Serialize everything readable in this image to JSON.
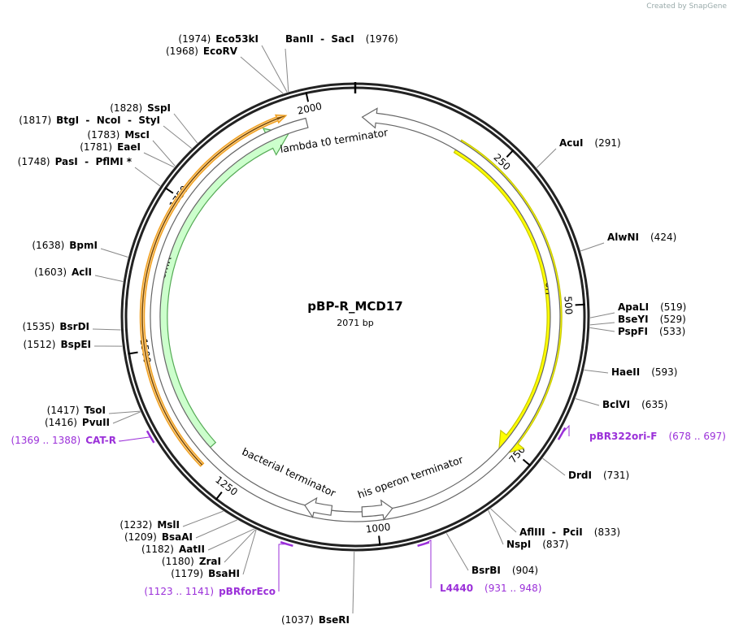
{
  "credit": "Created by SnapGene",
  "map": {
    "title": "pBP-R_MCD17",
    "length": 2071,
    "length_label": "2071 bp",
    "ticks": [
      250,
      500,
      750,
      1000,
      1250,
      1500,
      1750,
      2000
    ],
    "features": [
      {
        "name": "ori"
      },
      {
        "name": "CmR"
      },
      {
        "name": "lambda t0 terminator"
      },
      {
        "name": "bacterial terminator"
      },
      {
        "name": "his operon terminator"
      }
    ],
    "sites": [
      {
        "name": "Eco53kI",
        "position": 1974,
        "label": "(1974)"
      },
      {
        "name": "EcoRV",
        "position": 1968,
        "label": "(1968)"
      },
      {
        "name": "BanII  -  SacI",
        "position": 1976,
        "label": "(1976)"
      },
      {
        "name": "SspI",
        "position": 1828,
        "label": "(1828)"
      },
      {
        "name": "BtgI  -  NcoI  -  StyI",
        "position": 1817,
        "label": "(1817)"
      },
      {
        "name": "MscI",
        "position": 1783,
        "label": "(1783)"
      },
      {
        "name": "EaeI",
        "position": 1781,
        "label": "(1781)"
      },
      {
        "name": "PasI  -  PflMI *",
        "position": 1748,
        "label": "(1748)"
      },
      {
        "name": "BpmI",
        "position": 1638,
        "label": "(1638)"
      },
      {
        "name": "AclI",
        "position": 1603,
        "label": "(1603)"
      },
      {
        "name": "BsrDI",
        "position": 1535,
        "label": "(1535)"
      },
      {
        "name": "BspEI",
        "position": 1512,
        "label": "(1512)"
      },
      {
        "name": "TsoI",
        "position": 1417,
        "label": "(1417)"
      },
      {
        "name": "PvuII",
        "position": 1416,
        "label": "(1416)"
      },
      {
        "name": "MslI",
        "position": 1232,
        "label": "(1232)"
      },
      {
        "name": "BsaAI",
        "position": 1209,
        "label": "(1209)"
      },
      {
        "name": "AatII",
        "position": 1182,
        "label": "(1182)"
      },
      {
        "name": "ZraI",
        "position": 1180,
        "label": "(1180)"
      },
      {
        "name": "BsaHI",
        "position": 1179,
        "label": "(1179)"
      },
      {
        "name": "BseRI",
        "position": 1037,
        "label": "(1037)"
      },
      {
        "name": "AcuI",
        "position": 291,
        "label": "(291)"
      },
      {
        "name": "AlwNI",
        "position": 424,
        "label": "(424)"
      },
      {
        "name": "ApaLI",
        "position": 519,
        "label": "(519)"
      },
      {
        "name": "BseYI",
        "position": 529,
        "label": "(529)"
      },
      {
        "name": "PspFI",
        "position": 533,
        "label": "(533)"
      },
      {
        "name": "HaeII",
        "position": 593,
        "label": "(593)"
      },
      {
        "name": "BclVI",
        "position": 635,
        "label": "(635)"
      },
      {
        "name": "DrdI",
        "position": 731,
        "label": "(731)"
      },
      {
        "name": "AflIII  -  PciI",
        "position": 833,
        "label": "(833)"
      },
      {
        "name": "NspI",
        "position": 837,
        "label": "(837)"
      },
      {
        "name": "BsrBI",
        "position": 904,
        "label": "(904)"
      }
    ],
    "primers": [
      {
        "name": "CAT-R",
        "start": 1369,
        "end": 1388,
        "label": "(1369 .. 1388)"
      },
      {
        "name": "pBRforEco",
        "start": 1123,
        "end": 1141,
        "label": "(1123 .. 1141)"
      },
      {
        "name": "pBR322ori-F",
        "start": 678,
        "end": 697,
        "label": "(678 .. 697)"
      },
      {
        "name": "L4440",
        "start": 931,
        "end": 948,
        "label": "(931 .. 948)"
      }
    ]
  }
}
